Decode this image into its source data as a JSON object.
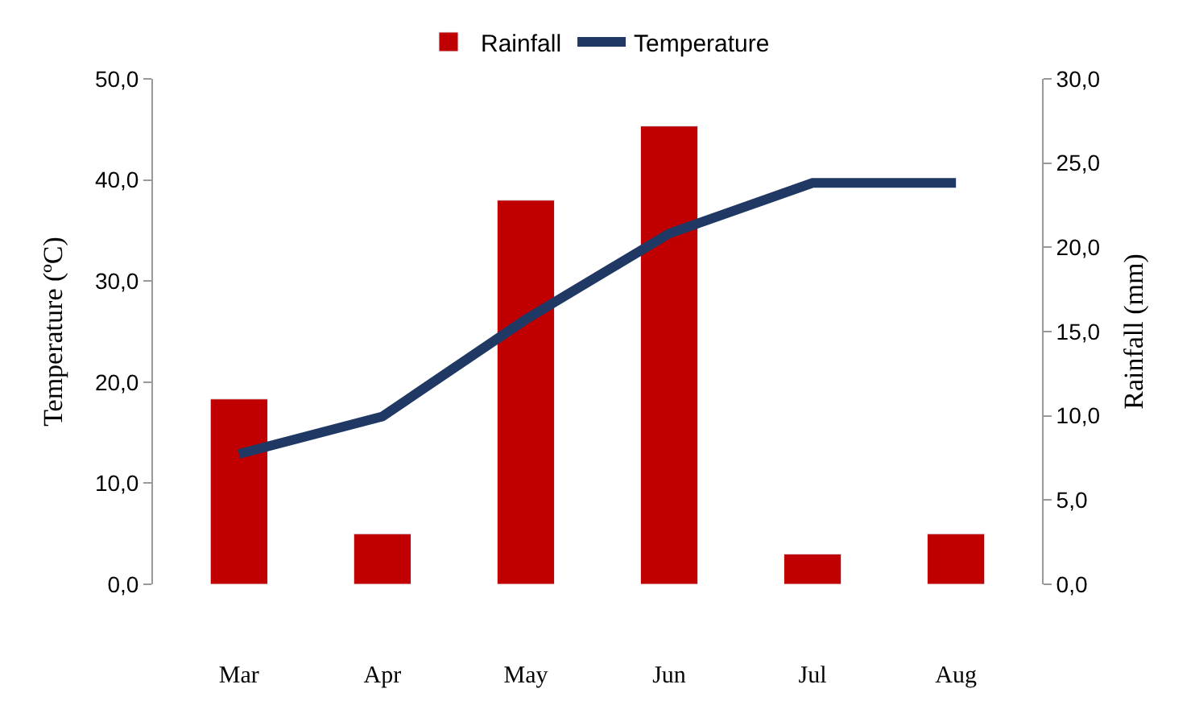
{
  "chart_data": {
    "type": "bar",
    "categories": [
      "Mar",
      "Apr",
      "May",
      "Jun",
      "Jul",
      "Aug"
    ],
    "series": [
      {
        "name": "Rainfall",
        "axis": "y2",
        "color": "#c00000",
        "values": [
          11.0,
          3.0,
          22.8,
          27.2,
          1.8,
          3.0
        ]
      },
      {
        "name": "Temperature",
        "type": "line",
        "axis": "y",
        "color": "#1f3864",
        "values": [
          12.9,
          16.6,
          26.2,
          34.7,
          39.7,
          39.7
        ]
      }
    ],
    "ylabel": "Temperature (ºC)",
    "y2label": "Rainfall (mm)",
    "ylim": [
      0,
      50
    ],
    "yticks": [
      {
        "value": 0,
        "label": "0,0"
      },
      {
        "value": 10,
        "label": "10,0"
      },
      {
        "value": 20,
        "label": "20,0"
      },
      {
        "value": 30,
        "label": "30,0"
      },
      {
        "value": 40,
        "label": "40,0"
      },
      {
        "value": 50,
        "label": "50,0"
      }
    ],
    "y2lim": [
      0,
      30
    ],
    "y2ticks": [
      {
        "value": 0,
        "label": "0,0"
      },
      {
        "value": 5,
        "label": "5,0"
      },
      {
        "value": 10,
        "label": "10,0"
      },
      {
        "value": 15,
        "label": "15,0"
      },
      {
        "value": 20,
        "label": "20,0"
      },
      {
        "value": 25,
        "label": "25,0"
      },
      {
        "value": 30,
        "label": "30,0"
      }
    ],
    "legend": "top",
    "grid": false,
    "marker": "none",
    "line_style": "solid"
  }
}
